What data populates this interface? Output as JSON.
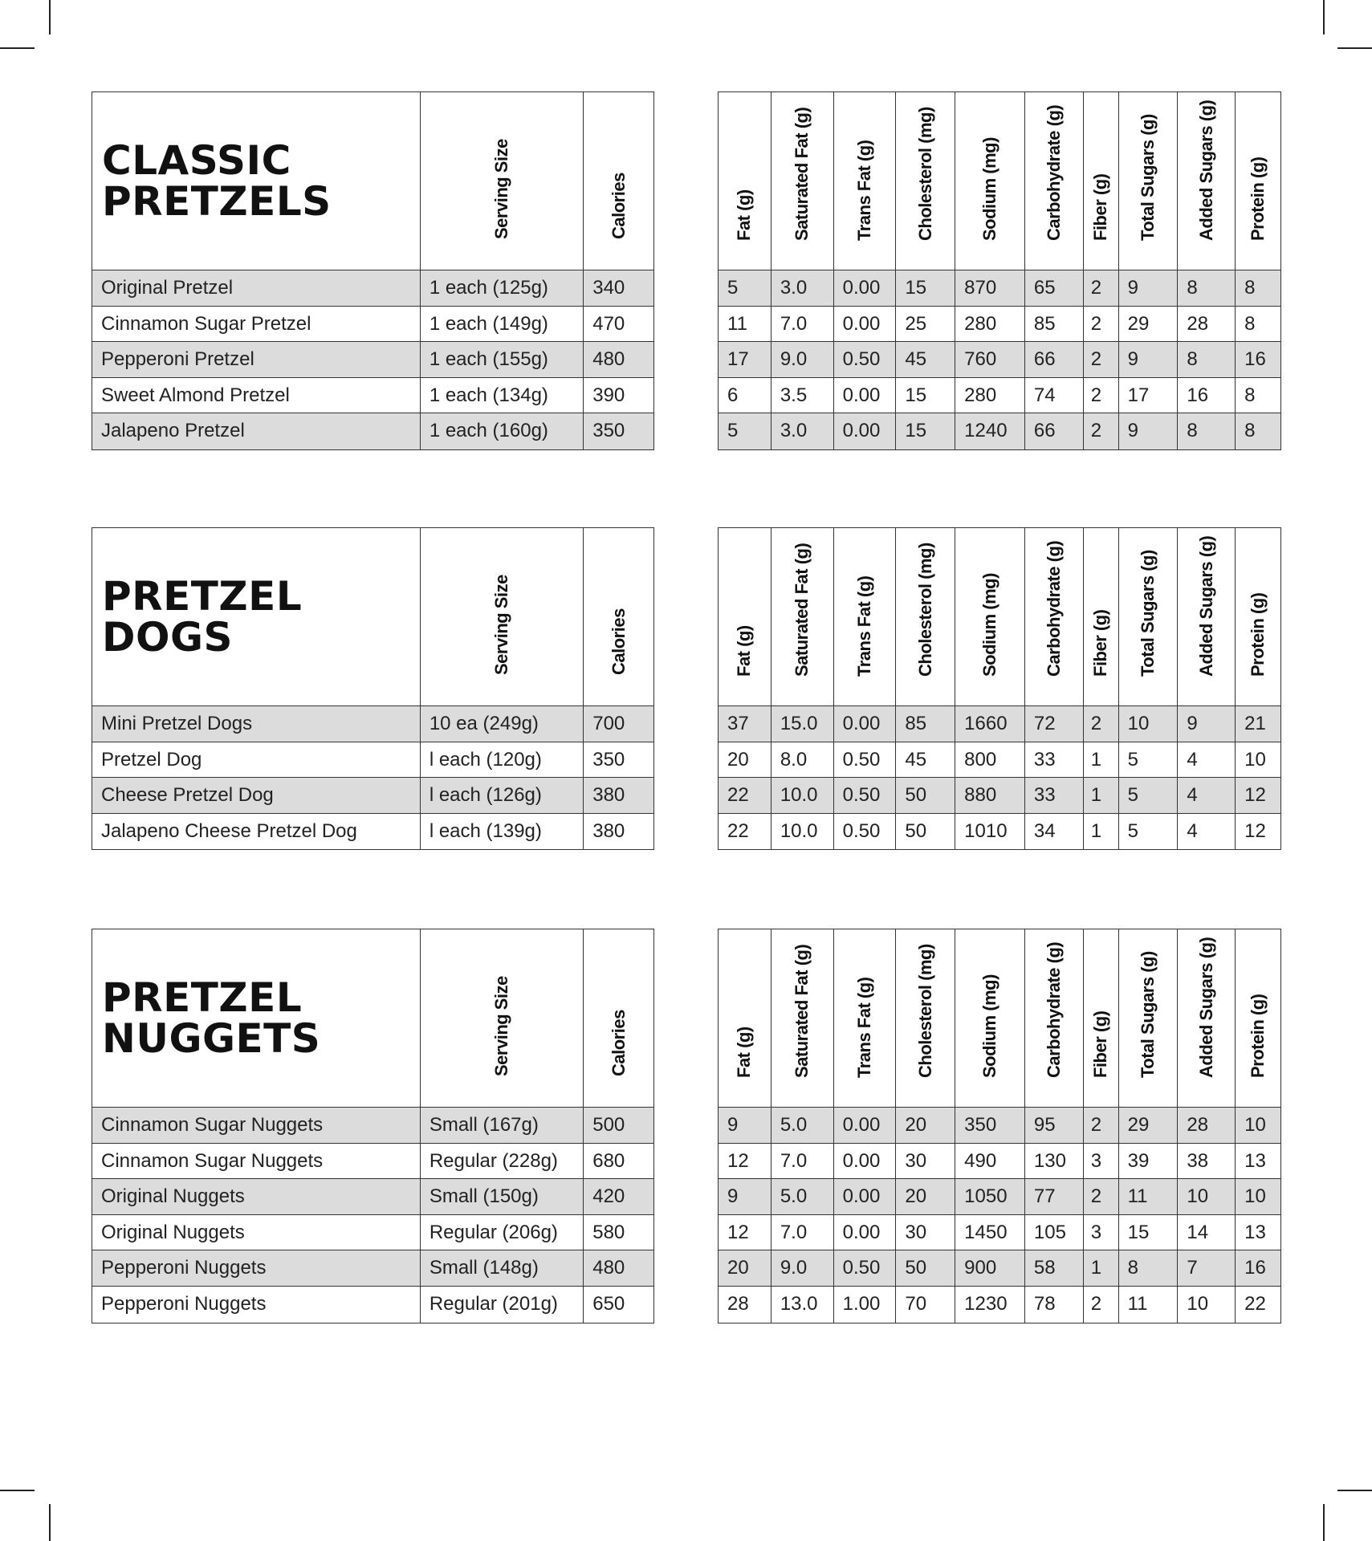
{
  "left_columns": [
    "Serving Size",
    "Calories"
  ],
  "right_columns": [
    "Fat (g)",
    "Saturated Fat (g)",
    "Trans Fat (g)",
    "Cholesterol (mg)",
    "Sodium (mg)",
    "Carbohydrate (g)",
    "Fiber (g)",
    "Total Sugars (g)",
    "Added Sugars (g)",
    "Protein (g)"
  ],
  "row_shading": "#dcdcdc",
  "sections": [
    {
      "title_lines": [
        "CLASSIC",
        "PRETZELS"
      ],
      "rows": [
        {
          "item": "Original Pretzel",
          "serving": "1 each (125g)",
          "calories": "340",
          "nutrition": [
            "5",
            "3.0",
            "0.00",
            "15",
            "870",
            "65",
            "2",
            "9",
            "8",
            "8"
          ]
        },
        {
          "item": "Cinnamon Sugar Pretzel",
          "serving": "1 each (149g)",
          "calories": "470",
          "nutrition": [
            "11",
            "7.0",
            "0.00",
            "25",
            "280",
            "85",
            "2",
            "29",
            "28",
            "8"
          ]
        },
        {
          "item": "Pepperoni Pretzel",
          "serving": "1 each (155g)",
          "calories": "480",
          "nutrition": [
            "17",
            "9.0",
            "0.50",
            "45",
            "760",
            "66",
            "2",
            "9",
            "8",
            "16"
          ]
        },
        {
          "item": "Sweet Almond Pretzel",
          "serving": "1 each (134g)",
          "calories": "390",
          "nutrition": [
            "6",
            "3.5",
            "0.00",
            "15",
            "280",
            "74",
            "2",
            "17",
            "16",
            "8"
          ]
        },
        {
          "item": "Jalapeno Pretzel",
          "serving": "1 each (160g)",
          "calories": "350",
          "nutrition": [
            "5",
            "3.0",
            "0.00",
            "15",
            "1240",
            "66",
            "2",
            "9",
            "8",
            "8"
          ]
        }
      ]
    },
    {
      "title_lines": [
        "PRETZEL",
        "DOGS"
      ],
      "rows": [
        {
          "item": "Mini Pretzel Dogs",
          "serving": "10 ea (249g)",
          "calories": "700",
          "nutrition": [
            "37",
            "15.0",
            "0.00",
            "85",
            "1660",
            "72",
            "2",
            "10",
            "9",
            "21"
          ]
        },
        {
          "item": "Pretzel Dog",
          "serving": "l each (120g)",
          "calories": "350",
          "nutrition": [
            "20",
            "8.0",
            "0.50",
            "45",
            "800",
            "33",
            "1",
            "5",
            "4",
            "10"
          ]
        },
        {
          "item": "Cheese Pretzel Dog",
          "serving": "l each (126g)",
          "calories": "380",
          "nutrition": [
            "22",
            "10.0",
            "0.50",
            "50",
            "880",
            "33",
            "1",
            "5",
            "4",
            "12"
          ]
        },
        {
          "item": "Jalapeno Cheese Pretzel Dog",
          "serving": "l each (139g)",
          "calories": "380",
          "nutrition": [
            "22",
            "10.0",
            "0.50",
            "50",
            "1010",
            "34",
            "1",
            "5",
            "4",
            "12"
          ]
        }
      ]
    },
    {
      "title_lines": [
        "PRETZEL",
        "NUGGETS"
      ],
      "rows": [
        {
          "item": "Cinnamon Sugar Nuggets",
          "serving": "Small (167g)",
          "calories": "500",
          "nutrition": [
            "9",
            "5.0",
            "0.00",
            "20",
            "350",
            "95",
            "2",
            "29",
            "28",
            "10"
          ]
        },
        {
          "item": "Cinnamon Sugar Nuggets",
          "serving": "Regular (228g)",
          "calories": "680",
          "nutrition": [
            "12",
            "7.0",
            "0.00",
            "30",
            "490",
            "130",
            "3",
            "39",
            "38",
            "13"
          ]
        },
        {
          "item": "Original Nuggets",
          "serving": "Small (150g)",
          "calories": "420",
          "nutrition": [
            "9",
            "5.0",
            "0.00",
            "20",
            "1050",
            "77",
            "2",
            "11",
            "10",
            "10"
          ]
        },
        {
          "item": "Original Nuggets",
          "serving": "Regular (206g)",
          "calories": "580",
          "nutrition": [
            "12",
            "7.0",
            "0.00",
            "30",
            "1450",
            "105",
            "3",
            "15",
            "14",
            "13"
          ]
        },
        {
          "item": "Pepperoni Nuggets",
          "serving": "Small (148g)",
          "calories": "480",
          "nutrition": [
            "20",
            "9.0",
            "0.50",
            "50",
            "900",
            "58",
            "1",
            "8",
            "7",
            "16"
          ]
        },
        {
          "item": "Pepperoni Nuggets",
          "serving": "Regular (201g)",
          "calories": "650",
          "nutrition": [
            "28",
            "13.0",
            "1.00",
            "70",
            "1230",
            "78",
            "2",
            "11",
            "10",
            "22"
          ]
        }
      ]
    }
  ]
}
